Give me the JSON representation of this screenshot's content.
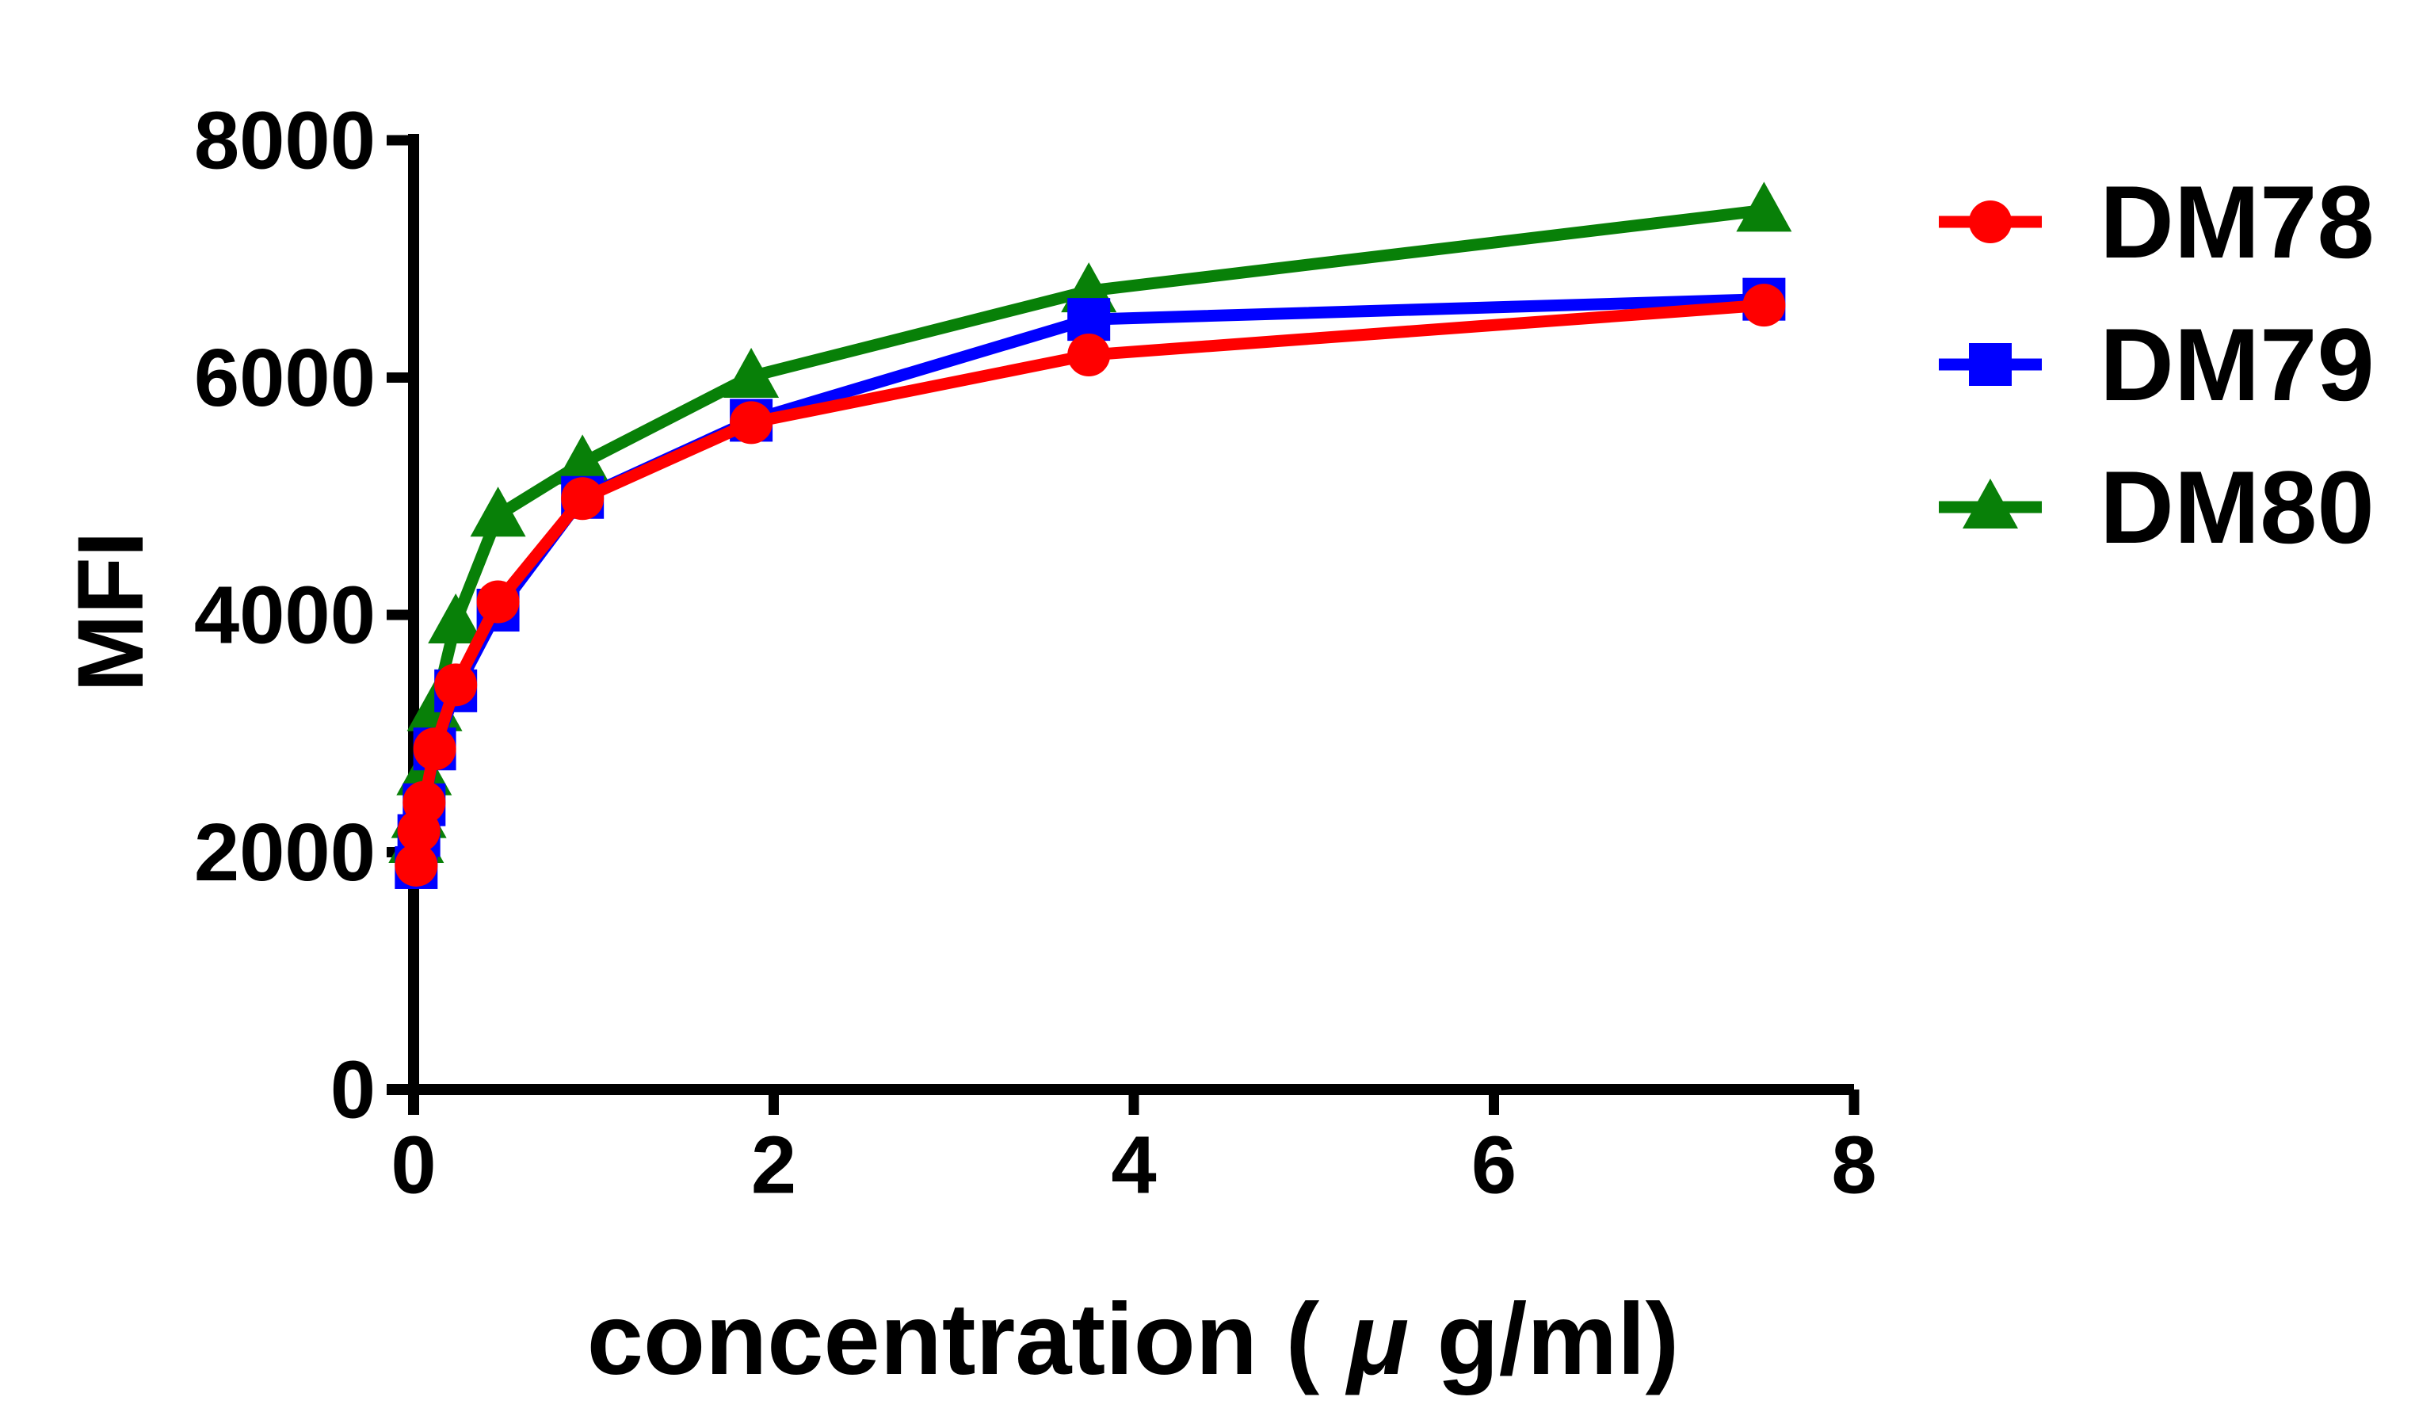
{
  "figure": {
    "background_color": "#ffffff",
    "text_color": "#000000"
  },
  "chart_data": {
    "type": "line",
    "title": "",
    "xlabel": "concentration (μg/ml)",
    "xlabel_parts": [
      "concentration (",
      "μ",
      "g/ml)"
    ],
    "ylabel": "MFI",
    "xlim": [
      0,
      8
    ],
    "ylim": [
      0,
      8000
    ],
    "x_ticks": [
      0,
      2,
      4,
      6,
      8
    ],
    "x_tick_labels": [
      "0",
      "2",
      "4",
      "6",
      "8"
    ],
    "y_ticks": [
      0,
      2000,
      4000,
      6000,
      8000
    ],
    "y_tick_labels": [
      "0",
      "2000",
      "4000",
      "6000",
      "8000"
    ],
    "grid": false,
    "legend_position": "right",
    "x": [
      0.0146,
      0.0293,
      0.0586,
      0.117,
      0.234,
      0.469,
      0.938,
      1.875,
      3.75,
      7.5
    ],
    "series": [
      {
        "name": "DM78",
        "color": "#ff0000",
        "marker": "circle",
        "values": [
          1890,
          2180,
          2420,
          2870,
          3410,
          4110,
          4980,
          5620,
          6190,
          6610
        ]
      },
      {
        "name": "DM79",
        "color": "#0000ff",
        "marker": "square",
        "values": [
          1870,
          2140,
          2400,
          2870,
          3360,
          4040,
          4990,
          5640,
          6490,
          6660
        ]
      },
      {
        "name": "DM80",
        "color": "#088008",
        "marker": "triangle",
        "values": [
          2090,
          2300,
          2660,
          3200,
          3940,
          4840,
          5280,
          6010,
          6730,
          7410
        ]
      }
    ]
  }
}
